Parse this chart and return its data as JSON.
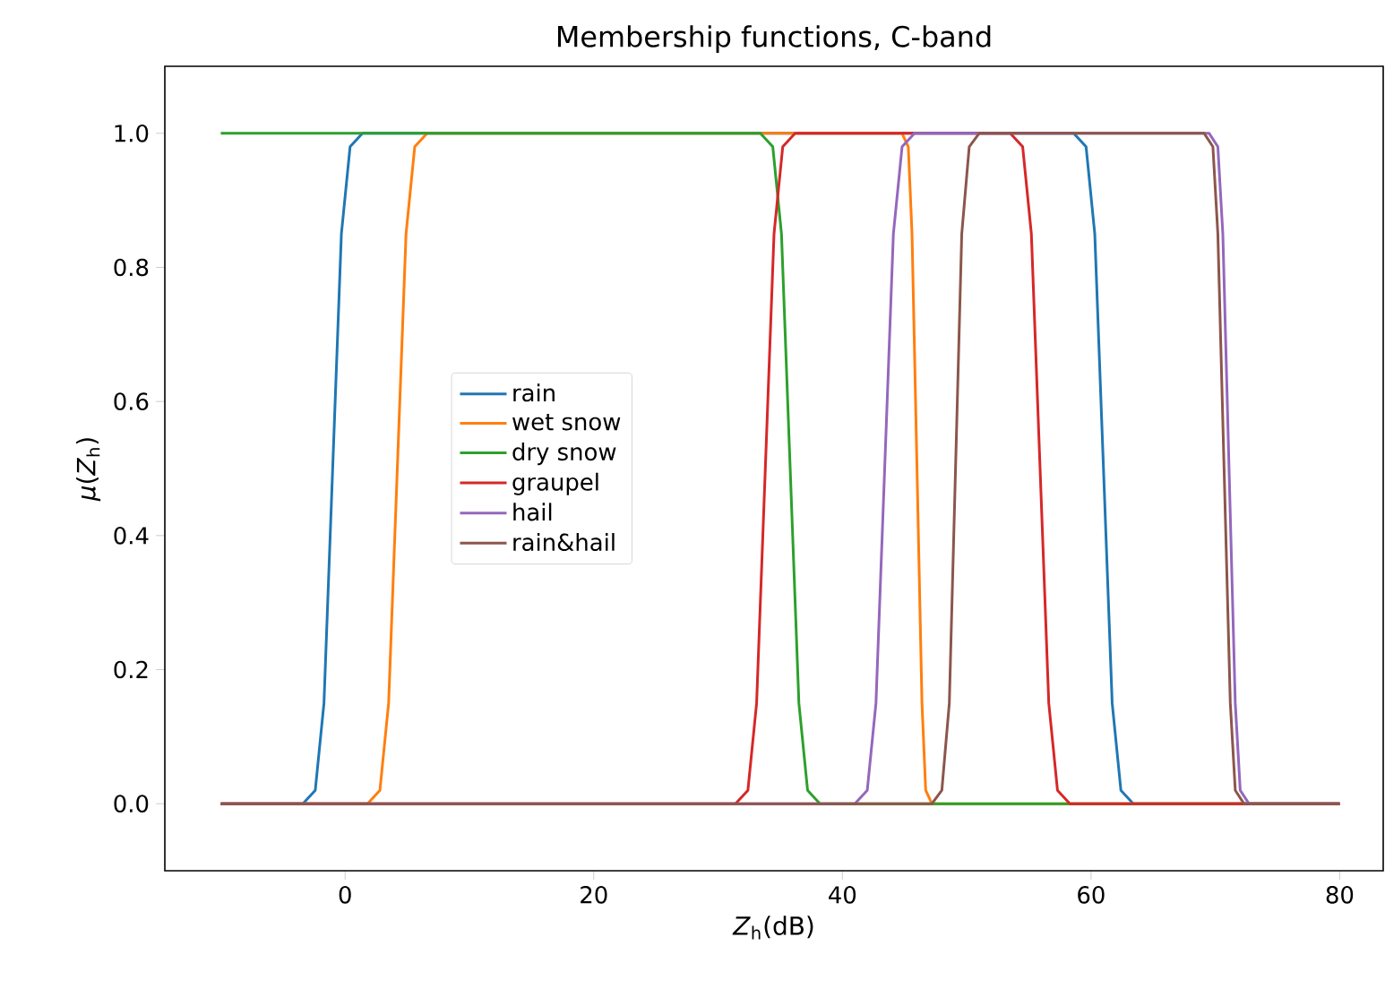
{
  "chart_data": {
    "type": "line",
    "title": "Membership functions, C-band",
    "xlabel": "*Z*$_{h}$(dB)",
    "ylabel": "*μ*(*Z*$_{h}$)",
    "xlim": [
      -14.5,
      83.5
    ],
    "ylim": [
      -0.1,
      1.1
    ],
    "xticks": [
      0,
      20,
      40,
      60,
      80
    ],
    "yticks": [
      {
        "value": 0,
        "label": "0.0"
      },
      0.2,
      0.4,
      0.6,
      0.8,
      {
        "value": 1,
        "label": "1.0"
      }
    ],
    "grid": false,
    "legend": "left",
    "marker": "none",
    "line_style": "solid",
    "series": [
      {
        "name": "rain",
        "color": "#1f77b4",
        "x": [
          -10,
          -3.4,
          -2.4,
          -1.7,
          -1,
          -0.3,
          0.4,
          1.4,
          58.6,
          59.6,
          60.3,
          61,
          61.7,
          62.4,
          63.4,
          80
        ],
        "values": [
          0,
          0,
          0.02,
          0.15,
          0.5,
          0.85,
          0.98,
          1,
          1,
          0.98,
          0.85,
          0.5,
          0.15,
          0.02,
          0,
          0
        ]
      },
      {
        "name": "wet snow",
        "color": "#ff7f0e",
        "x": [
          -10,
          1.8,
          2.8,
          3.5,
          4.2,
          4.9,
          5.6,
          6.6,
          44.8,
          45.3,
          45.6,
          46.0,
          46.4,
          46.7,
          47.2,
          80
        ],
        "values": [
          0,
          0,
          0.02,
          0.15,
          0.5,
          0.85,
          0.98,
          1,
          1,
          0.98,
          0.85,
          0.5,
          0.15,
          0.02,
          0,
          0
        ]
      },
      {
        "name": "dry snow",
        "color": "#2ca02c",
        "x": [
          -10,
          33.4,
          34.4,
          35.1,
          35.8,
          36.5,
          37.2,
          38.2,
          80
        ],
        "values": [
          1,
          1,
          0.98,
          0.85,
          0.5,
          0.15,
          0.02,
          0,
          0
        ]
      },
      {
        "name": "graupel",
        "color": "#d62728",
        "x": [
          -10,
          31.4,
          32.4,
          33.1,
          33.8,
          34.5,
          35.2,
          36.2,
          53.5,
          54.5,
          55.2,
          55.9,
          56.6,
          57.3,
          58.3,
          80
        ],
        "values": [
          0,
          0,
          0.02,
          0.15,
          0.5,
          0.85,
          0.98,
          1,
          1,
          0.98,
          0.85,
          0.5,
          0.15,
          0.02,
          0,
          0
        ]
      },
      {
        "name": "hail",
        "color": "#9467bd",
        "x": [
          -10,
          41.0,
          42.0,
          42.7,
          43.4,
          44.1,
          44.8,
          45.8,
          69.5,
          70.2,
          70.6,
          71.1,
          71.6,
          72.0,
          72.7,
          80
        ],
        "values": [
          0,
          0,
          0.02,
          0.15,
          0.5,
          0.85,
          0.98,
          1,
          1,
          0.98,
          0.85,
          0.5,
          0.15,
          0.02,
          0,
          0
        ]
      },
      {
        "name": "rain&hail",
        "color": "#8c564b",
        "x": [
          -10,
          47.2,
          48.0,
          48.6,
          49.1,
          49.6,
          50.2,
          51.0,
          69.1,
          69.8,
          70.2,
          70.7,
          71.2,
          71.6,
          72.3,
          80
        ],
        "values": [
          0,
          0,
          0.02,
          0.15,
          0.5,
          0.85,
          0.98,
          1,
          1,
          0.98,
          0.85,
          0.5,
          0.15,
          0.02,
          0,
          0
        ]
      }
    ]
  }
}
